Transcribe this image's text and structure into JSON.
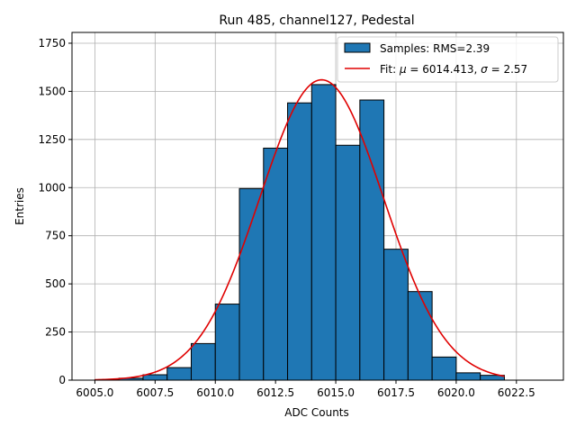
{
  "chart_data": {
    "type": "bar",
    "title": "Run 485, channel127, Pedestal",
    "xlabel": "ADC Counts",
    "ylabel": "Entries",
    "xlim": [
      6004.05,
      6024.45
    ],
    "ylim": [
      0,
      1806
    ],
    "grid": true,
    "legend_placement": "top-right",
    "xticks": [
      6005.0,
      6007.5,
      6010.0,
      6012.5,
      6015.0,
      6017.5,
      6020.0,
      6022.5
    ],
    "xtick_labels": [
      "6005.0",
      "6007.5",
      "6010.0",
      "6012.5",
      "6015.0",
      "6017.5",
      "6020.0",
      "6022.5"
    ],
    "yticks": [
      0,
      250,
      500,
      750,
      1000,
      1250,
      1500,
      1750
    ],
    "ytick_labels": [
      "0",
      "250",
      "500",
      "750",
      "1000",
      "1250",
      "1500",
      "1750"
    ],
    "bar_color": "#1f77b4",
    "fit_color": "#e00000",
    "histogram": {
      "name": "Samples: RMS=2.39",
      "bin_edges": [
        6005.0,
        6006.0,
        6007.0,
        6008.0,
        6009.0,
        6010.0,
        6011.0,
        6012.0,
        6013.0,
        6014.0,
        6015.0,
        6016.0,
        6017.0,
        6018.0,
        6019.0,
        6020.0,
        6021.0,
        6022.0
      ],
      "counts": [
        2,
        10,
        28,
        65,
        190,
        395,
        995,
        1205,
        1440,
        1535,
        1220,
        1455,
        680,
        460,
        120,
        38,
        25
      ]
    },
    "fit": {
      "name_prefix": "Fit: ",
      "mu_symbol": "μ",
      "mu_text": " = 6014.413, ",
      "sigma_symbol": "σ",
      "sigma_text": " = 2.57",
      "mu": 6014.413,
      "sigma": 2.57,
      "amplitude": 1560,
      "x_range": [
        6005.0,
        6022.0
      ]
    }
  }
}
